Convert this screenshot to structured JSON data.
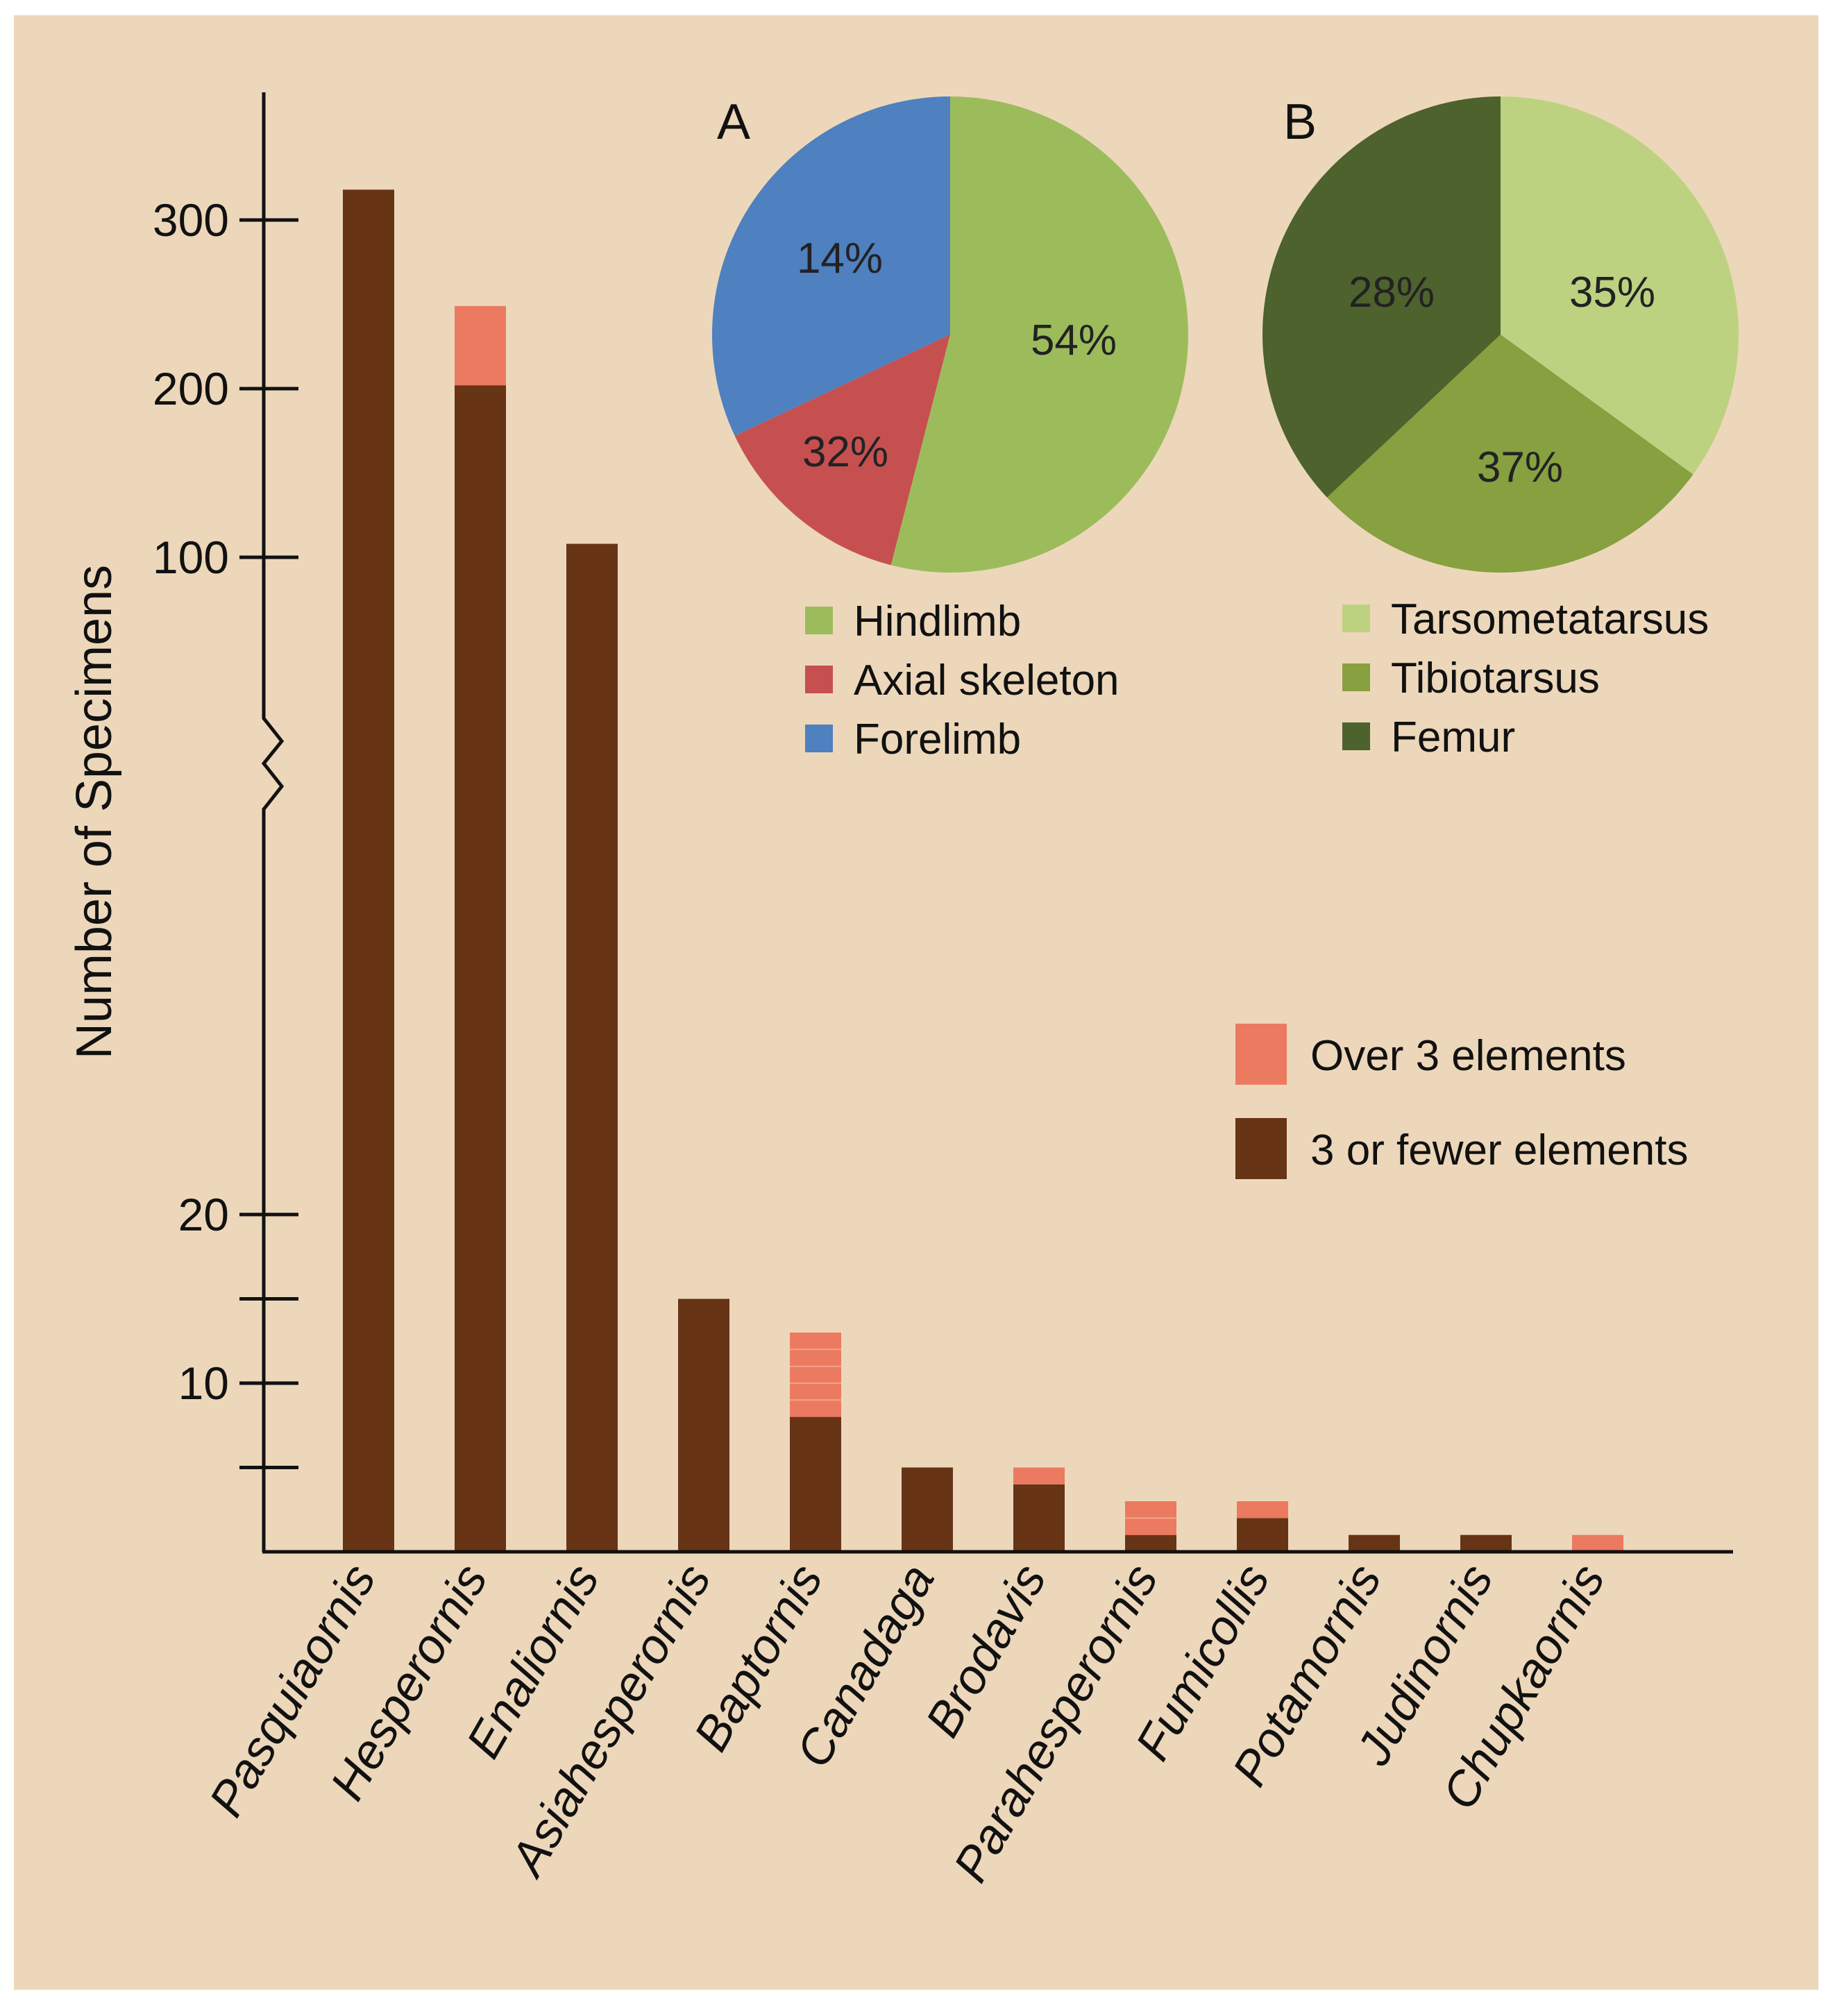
{
  "chart_data": [
    {
      "type": "bar",
      "stacked": true,
      "ylabel": "Number of Specimens",
      "y_axis_broken": true,
      "y_ticks_upper": [
        100,
        200,
        300
      ],
      "y_ticks_lower": [
        10,
        20
      ],
      "y_tick_labels": [
        "300",
        "200",
        "100",
        "20",
        "10"
      ],
      "categories": [
        "Pasquiaornis",
        "Hesperornis",
        "Enaliornis",
        "Asiahesperornis",
        "Baptornis",
        "Canadaga",
        "Brodavis",
        "Parahesperornis",
        "Fumicollis",
        "Potamornis",
        "Judinornis",
        "Chupkaornis"
      ],
      "series": [
        {
          "name": "3 or fewer elements",
          "color": "#673415",
          "values": [
            318,
            202,
            108,
            15,
            8,
            5,
            4,
            1,
            2,
            1,
            1,
            0
          ]
        },
        {
          "name": "Over 3 elements",
          "color": "#EB7A61",
          "values": [
            0,
            47,
            0,
            0,
            5,
            0,
            1,
            2,
            1,
            0,
            0,
            1
          ]
        }
      ],
      "legend_position": "right"
    },
    {
      "type": "pie",
      "panel": "A",
      "labels": [
        "Hindlimb",
        "Axial skeleton",
        "Forelimb"
      ],
      "values": [
        54,
        14,
        32
      ],
      "value_labels": [
        "54%",
        "14%",
        "32%"
      ],
      "colors": [
        "#9CBC5C",
        "#C65050",
        "#4F80BF"
      ],
      "legend_position": "bottom"
    },
    {
      "type": "pie",
      "panel": "B",
      "labels": [
        "Tarsometatarsus",
        "Tibiotarsus",
        "Femur"
      ],
      "values": [
        35,
        28,
        37
      ],
      "value_labels": [
        "35%",
        "28%",
        "37%"
      ],
      "colors": [
        "#BDD280",
        "#87A040",
        "#4D622C"
      ],
      "legend_position": "bottom"
    }
  ],
  "colors": {
    "background": "#EDD7BA",
    "axis": "#111111"
  }
}
